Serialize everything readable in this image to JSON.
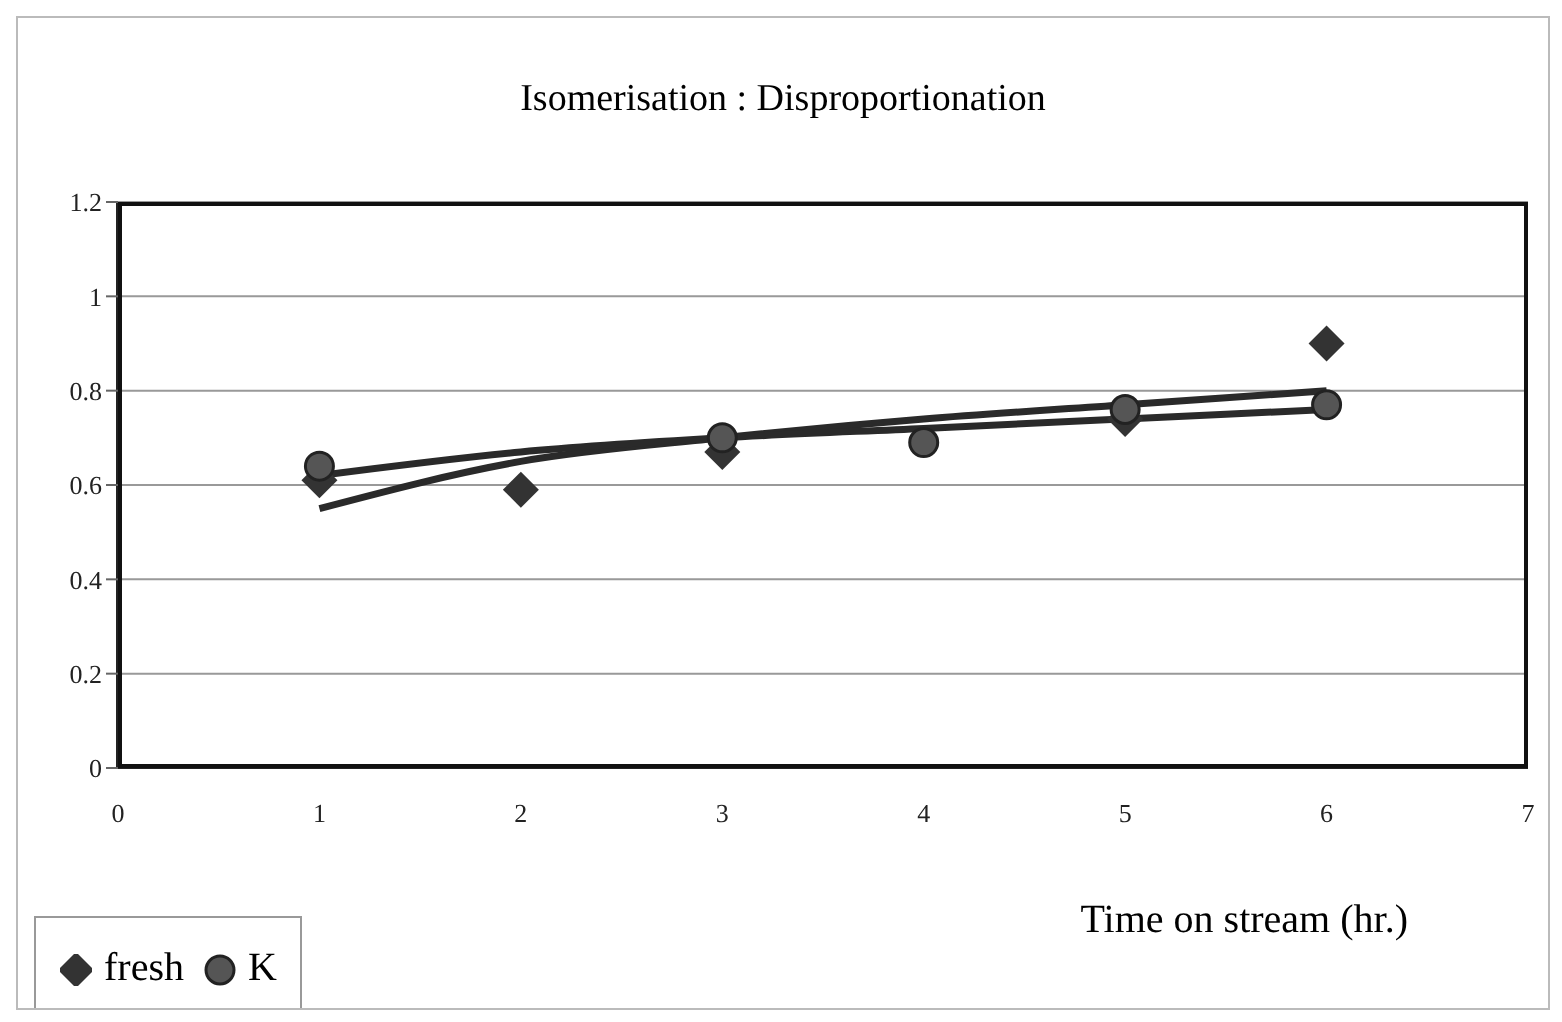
{
  "chart_data": {
    "type": "scatter",
    "title": "Isomerisation : Disproportionation",
    "xlabel": "Time on stream (hr.)",
    "x": [
      1,
      2,
      3,
      4,
      5,
      6
    ],
    "series": [
      {
        "name": "fresh",
        "marker": "diamond",
        "color": "#333333",
        "values": [
          0.61,
          0.59,
          0.67,
          null,
          0.74,
          0.9
        ]
      },
      {
        "name": "K",
        "marker": "circle",
        "color": "#555555",
        "values": [
          0.64,
          null,
          0.7,
          0.69,
          0.76,
          0.77
        ]
      },
      {
        "type": "line",
        "marker": "none",
        "color": "#2a2a2a",
        "values": [
          0.55,
          0.65,
          0.7,
          0.74,
          0.77,
          0.8
        ]
      },
      {
        "type": "line",
        "marker": "none",
        "color": "#2a2a2a",
        "values": [
          0.62,
          0.67,
          0.7,
          0.72,
          0.74,
          0.76
        ]
      }
    ],
    "xlim": [
      0,
      7
    ],
    "xticks": [
      0,
      1,
      2,
      3,
      4,
      5,
      6,
      7
    ],
    "ylim": [
      0,
      1.2
    ],
    "yticks": [
      0,
      0.2,
      0.4,
      0.6,
      0.8,
      1,
      1.2
    ],
    "grid": "y",
    "legend": "bottom left"
  }
}
